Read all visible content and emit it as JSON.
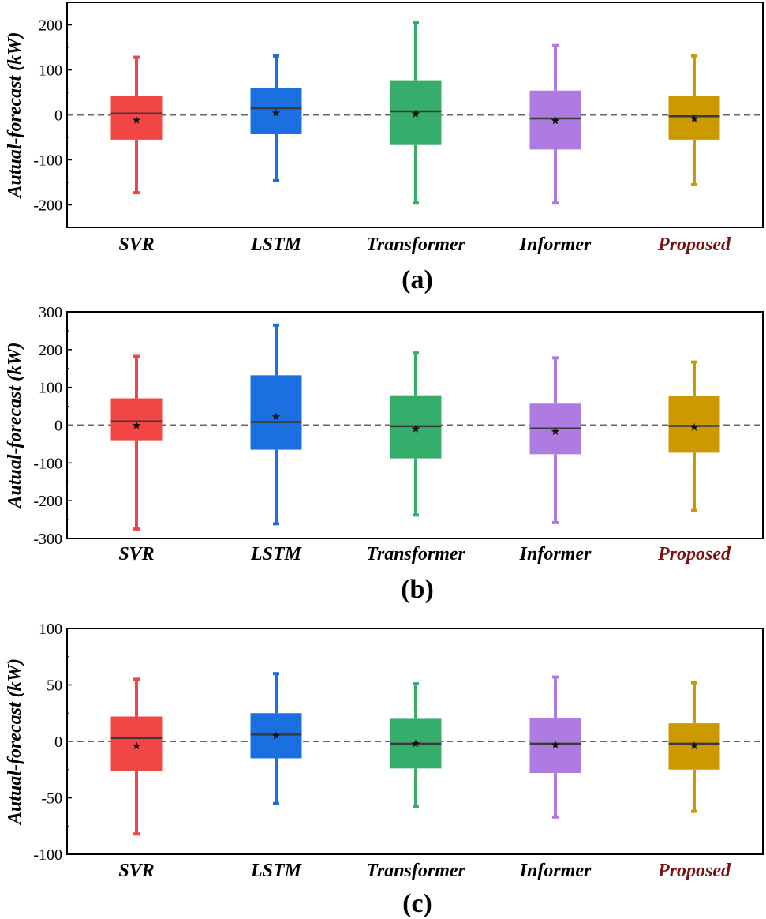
{
  "chart_data": [
    {
      "type": "box",
      "panel_label": "(a)",
      "ylabel": "Autual-forecast (kW)",
      "ylim": [
        -250,
        250
      ],
      "yticks": [
        -200,
        -100,
        0,
        100,
        200
      ],
      "reference_line": 0,
      "categories": [
        "SVR",
        "LSTM",
        "Transformer",
        "Informer",
        "Proposed"
      ],
      "boxes": [
        {
          "min": -173,
          "q1": -55,
          "median": 3,
          "q3": 43,
          "max": 128,
          "mean": -12
        },
        {
          "min": -146,
          "q1": -43,
          "median": 15,
          "q3": 60,
          "max": 131,
          "mean": 4
        },
        {
          "min": -196,
          "q1": -67,
          "median": 8,
          "q3": 77,
          "max": 205,
          "mean": 2
        },
        {
          "min": -196,
          "q1": -77,
          "median": -8,
          "q3": 54,
          "max": 154,
          "mean": -13
        },
        {
          "min": -155,
          "q1": -55,
          "median": -3,
          "q3": 43,
          "max": 131,
          "mean": -9
        }
      ]
    },
    {
      "type": "box",
      "panel_label": "(b)",
      "ylabel": "Autual-forecast (kW)",
      "ylim": [
        -300,
        300
      ],
      "yticks": [
        -300,
        -200,
        -100,
        0,
        100,
        200,
        300
      ],
      "reference_line": 0,
      "categories": [
        "SVR",
        "LSTM",
        "Transformer",
        "Informer",
        "Proposed"
      ],
      "boxes": [
        {
          "min": -275,
          "q1": -40,
          "median": 10,
          "q3": 71,
          "max": 182,
          "mean": -1
        },
        {
          "min": -261,
          "q1": -65,
          "median": 8,
          "q3": 132,
          "max": 265,
          "mean": 22
        },
        {
          "min": -238,
          "q1": -88,
          "median": -3,
          "q3": 79,
          "max": 191,
          "mean": -10
        },
        {
          "min": -258,
          "q1": -77,
          "median": -9,
          "q3": 57,
          "max": 178,
          "mean": -17
        },
        {
          "min": -226,
          "q1": -73,
          "median": -2,
          "q3": 77,
          "max": 167,
          "mean": -6
        }
      ]
    },
    {
      "type": "box",
      "panel_label": "(c)",
      "ylabel": "Autual-forecast (kW)",
      "ylim": [
        -100,
        100
      ],
      "yticks": [
        -100,
        -50,
        0,
        50,
        100
      ],
      "reference_line": 0,
      "categories": [
        "SVR",
        "LSTM",
        "Transformer",
        "Informer",
        "Proposed"
      ],
      "boxes": [
        {
          "min": -82,
          "q1": -26,
          "median": 3,
          "q3": 22,
          "max": 55,
          "mean": -4
        },
        {
          "min": -55,
          "q1": -15,
          "median": 6,
          "q3": 25,
          "max": 60,
          "mean": 5
        },
        {
          "min": -58,
          "q1": -24,
          "median": -2,
          "q3": 20,
          "max": 51,
          "mean": -2
        },
        {
          "min": -67,
          "q1": -28,
          "median": -2,
          "q3": 21,
          "max": 57,
          "mean": -3
        },
        {
          "min": -62,
          "q1": -25,
          "median": -2,
          "q3": 16,
          "max": 52,
          "mean": -4
        }
      ]
    }
  ],
  "colors": {
    "boxes": [
      "#f24545",
      "#1b70e0",
      "#36ad6a",
      "#ae7be0",
      "#cc9900"
    ],
    "category_labels": [
      "#000000",
      "#000000",
      "#000000",
      "#000000",
      "#7a1010"
    ],
    "median_line": "#3a3a3a",
    "reference_line": "#666666"
  }
}
